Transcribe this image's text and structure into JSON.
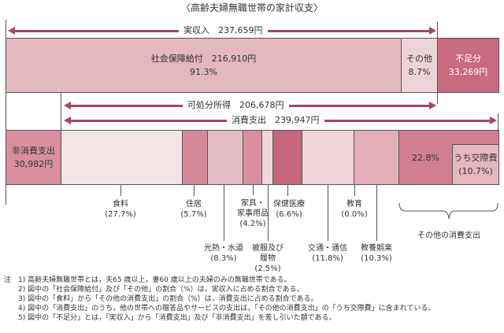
{
  "title": "〈高齢夫婦無職世帯の家計収支〉",
  "income": {
    "label": "実収入　237,659円",
    "social_security": {
      "name": "社会保障給付　216,910円",
      "pct": "91.3%"
    },
    "other": {
      "name": "その他",
      "pct": "8.7%"
    },
    "shortfall": {
      "name": "不足分",
      "amount": "33,269円"
    }
  },
  "disposable": "可処分所得　206,678円",
  "consumption": "消費支出　239,947円",
  "non_consumption": {
    "name": "非消費支出",
    "amount": "30,982円"
  },
  "items": [
    {
      "name": "食料",
      "pct": "(27.7%)"
    },
    {
      "name": "住居",
      "pct": "(5.7%)"
    },
    {
      "name": "光熱・水道",
      "pct": "(8.3%)"
    },
    {
      "name": "家具・",
      "name2": "家事用品",
      "pct": "(4.2%)"
    },
    {
      "name": "被服及び",
      "name2": "履物",
      "pct": "(2.5%)"
    },
    {
      "name": "保健医療",
      "pct": "(6.6%)"
    },
    {
      "name": "交通・通信",
      "pct": "(11.8%)"
    },
    {
      "name": "教育",
      "pct": "(0.0%)"
    },
    {
      "name": "教養娯楽",
      "pct": "(10.3%)"
    }
  ],
  "other_consumption": {
    "pct": "22.8%",
    "sub_name": "うち交際費",
    "sub_pct": "(10.7%)",
    "name": "その他の消費支出"
  },
  "colors": {
    "arrow": "#a8465f",
    "shortfall": "#c96a80",
    "social": "#e4b6be"
  },
  "notes": [
    "注　1) 高齢夫婦無職世帯とは，夫65 歳以上，妻60 歳以上の夫婦のみの無職世帯である。",
    "2) 図中の「社会保障給付」及び「その他」の割合（%）は，実収入に占める割合である。",
    "3) 図中の「食料」から「その他の消費支出」の割合（%）は，消費支出に占める割合である。",
    "4) 図中の「消費支出」のうち，他の世帯への贈答品やサービスの支出は，「その他の消費支出」の「うち交際費」に含まれている。",
    "5) 図中の「不足分」とは，「実収入」から「消費支出」及び「非消費支出」を差し引いた額である。"
  ]
}
